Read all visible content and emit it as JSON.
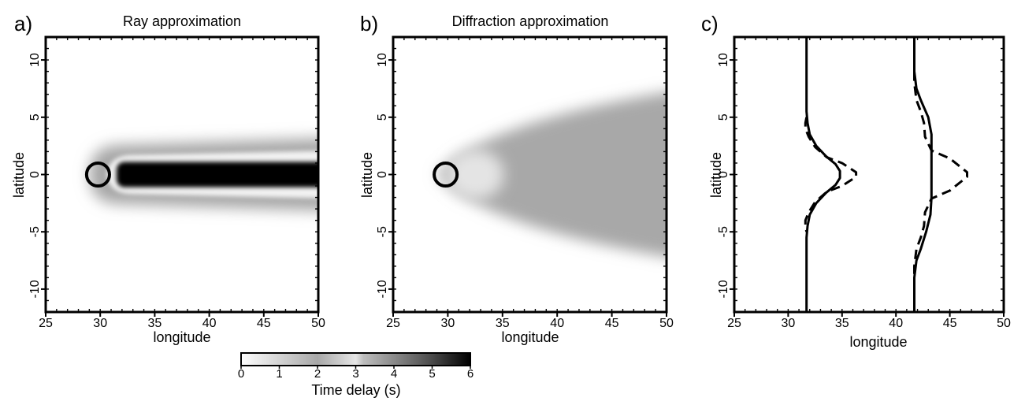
{
  "colors": {
    "frame": "#000000",
    "background": "#ffffff"
  },
  "chart_data": [
    {
      "type": "heatmap",
      "panel_label": "a)",
      "title": "Ray approximation",
      "xlabel": "longitude",
      "ylabel": "latitude",
      "xlim": [
        25,
        50
      ],
      "ylim": [
        -12,
        12
      ],
      "x_ticks": [
        25,
        30,
        35,
        40,
        45,
        50
      ],
      "y_ticks": [
        10,
        5,
        0,
        -5,
        -10
      ],
      "x_tick_labels": [
        "25",
        "30",
        "35",
        "40",
        "45",
        "50"
      ],
      "y_tick_labels": [
        "10",
        "5",
        "0",
        "-5",
        "-10"
      ],
      "value_unit": "Time delay (s)",
      "source_circle": {
        "lon": 29.8,
        "lat": 0,
        "radius_deg": 1.0
      },
      "features": [
        {
          "kind": "core",
          "lon_start": 31.5,
          "lon_end": 50,
          "half_width_lat": 1.1,
          "value": 6
        },
        {
          "kind": "halo",
          "lon_start": 29,
          "lon_end": 50,
          "half_width_lat_start": 2.6,
          "half_width_lat_end": 3.2,
          "value": 3.5
        }
      ]
    },
    {
      "type": "heatmap",
      "panel_label": "b)",
      "title": "Diffraction approximation",
      "xlabel": "longitude",
      "ylabel": "latitude",
      "xlim": [
        25,
        50
      ],
      "ylim": [
        -12,
        12
      ],
      "x_ticks": [
        25,
        30,
        35,
        40,
        45,
        50
      ],
      "y_ticks": [
        10,
        5,
        0,
        -5,
        -10
      ],
      "x_tick_labels": [
        "25",
        "30",
        "35",
        "40",
        "45",
        "50"
      ],
      "y_tick_labels": [
        "10",
        "5",
        "0",
        "-5",
        "-10"
      ],
      "value_unit": "Time delay (s)",
      "source_circle": {
        "lon": 29.8,
        "lat": 0,
        "radius_deg": 1.0
      },
      "features": [
        {
          "kind": "wedge",
          "apex_lon": 29,
          "lon_end": 50,
          "half_width_lat_end": 7.5,
          "value": 3.0
        },
        {
          "kind": "bright_spot",
          "lon": 32.5,
          "lat": 0,
          "radius_deg": 2.2,
          "value": 1.5
        }
      ]
    },
    {
      "type": "line",
      "panel_label": "c)",
      "title": "",
      "xlabel": "longitude",
      "ylabel": "latitude",
      "xlim": [
        25,
        50
      ],
      "ylim": [
        -12,
        12
      ],
      "x_ticks": [
        25,
        30,
        35,
        40,
        45,
        50
      ],
      "y_ticks": [
        10,
        5,
        0,
        -5,
        -10
      ],
      "x_tick_labels": [
        "25",
        "30",
        "35",
        "40",
        "45",
        "50"
      ],
      "y_tick_labels": [
        "10",
        "5",
        "0",
        "-5",
        "-10"
      ],
      "series": [
        {
          "style": "solid",
          "points": [
            [
              31.7,
              12
            ],
            [
              31.7,
              5.5
            ],
            [
              31.8,
              4.5
            ],
            [
              32.0,
              3.5
            ],
            [
              32.6,
              2.5
            ],
            [
              33.5,
              1.6
            ],
            [
              34.4,
              0.9
            ],
            [
              34.8,
              0.3
            ],
            [
              34.8,
              -0.3
            ],
            [
              34.4,
              -0.9
            ],
            [
              33.5,
              -1.6
            ],
            [
              32.6,
              -2.5
            ],
            [
              32.0,
              -3.5
            ],
            [
              31.8,
              -4.5
            ],
            [
              31.7,
              -5.5
            ],
            [
              31.7,
              -12
            ]
          ]
        },
        {
          "style": "dashed",
          "points": [
            [
              31.7,
              5.0
            ],
            [
              31.6,
              4.5
            ],
            [
              31.6,
              4.0
            ],
            [
              31.9,
              3.3
            ],
            [
              32.5,
              2.4
            ],
            [
              33.6,
              1.5
            ],
            [
              35.0,
              1.0
            ],
            [
              36.3,
              0.2
            ],
            [
              36.3,
              -0.2
            ],
            [
              35.0,
              -1.0
            ],
            [
              33.6,
              -1.5
            ],
            [
              32.5,
              -2.4
            ],
            [
              31.9,
              -3.3
            ],
            [
              31.6,
              -4.0
            ],
            [
              31.6,
              -4.5
            ],
            [
              31.7,
              -5.0
            ]
          ]
        },
        {
          "style": "solid",
          "points": [
            [
              41.7,
              12
            ],
            [
              41.7,
              9.0
            ],
            [
              41.9,
              7.5
            ],
            [
              42.3,
              6.5
            ],
            [
              43.0,
              5.0
            ],
            [
              43.3,
              3.5
            ],
            [
              43.3,
              2.0
            ],
            [
              43.3,
              -2.0
            ],
            [
              43.2,
              -3.5
            ],
            [
              42.8,
              -5.0
            ],
            [
              42.3,
              -6.5
            ],
            [
              41.9,
              -7.5
            ],
            [
              41.7,
              -9.0
            ],
            [
              41.7,
              -12
            ]
          ]
        },
        {
          "style": "dashed",
          "points": [
            [
              41.7,
              9.0
            ],
            [
              41.7,
              8.0
            ],
            [
              41.9,
              6.5
            ],
            [
              42.3,
              5.5
            ],
            [
              42.6,
              4.5
            ],
            [
              42.7,
              3.3
            ],
            [
              43.3,
              2.1
            ],
            [
              45.0,
              1.4
            ],
            [
              46.6,
              0.2
            ],
            [
              46.6,
              -0.2
            ],
            [
              45.0,
              -1.4
            ],
            [
              43.3,
              -2.1
            ],
            [
              42.7,
              -3.3
            ],
            [
              42.6,
              -4.5
            ],
            [
              42.3,
              -5.5
            ],
            [
              41.9,
              -6.5
            ],
            [
              41.7,
              -8.0
            ],
            [
              41.7,
              -9.0
            ]
          ]
        }
      ]
    }
  ],
  "colorbar": {
    "label": "Time delay (s)",
    "min": 0,
    "max": 6,
    "ticks": [
      0,
      1,
      2,
      3,
      4,
      5,
      6
    ],
    "tick_labels": [
      "0",
      "1",
      "2",
      "3",
      "4",
      "5",
      "6"
    ],
    "color_stops": [
      {
        "value": 0,
        "color": "#ffffff"
      },
      {
        "value": 2,
        "color": "#a8a8a8"
      },
      {
        "value": 3,
        "color": "#e6e6e6"
      },
      {
        "value": 3.2,
        "color": "#bdbdbd"
      },
      {
        "value": 4,
        "color": "#8a8a8a"
      },
      {
        "value": 5,
        "color": "#4a4a4a"
      },
      {
        "value": 6,
        "color": "#000000"
      }
    ]
  }
}
